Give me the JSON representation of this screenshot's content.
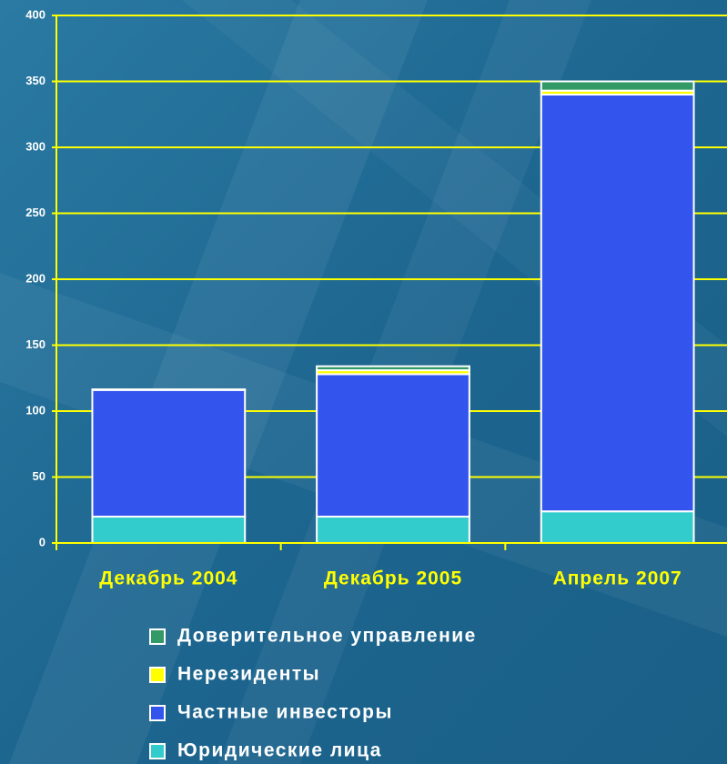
{
  "chart_data": {
    "type": "stacked_bar",
    "categories": [
      "Декабрь 2004",
      "Декабрь 2005",
      "Апрель 2007"
    ],
    "series": [
      {
        "name": "Юридические лица",
        "color": "#33cccc",
        "values": [
          20,
          20,
          24
        ]
      },
      {
        "name": "Частные инвесторы",
        "color": "#3355ee",
        "values": [
          96,
          108,
          316
        ]
      },
      {
        "name": "Нерезиденты",
        "color": "#ffff00",
        "values": [
          0.5,
          3,
          3
        ]
      },
      {
        "name": "Доверительное управление",
        "color": "#339966",
        "values": [
          0,
          3,
          7
        ]
      }
    ],
    "ylim": [
      0,
      400
    ],
    "yticks": [
      0,
      50,
      100,
      150,
      200,
      250,
      300,
      350,
      400
    ],
    "grid": true
  }
}
